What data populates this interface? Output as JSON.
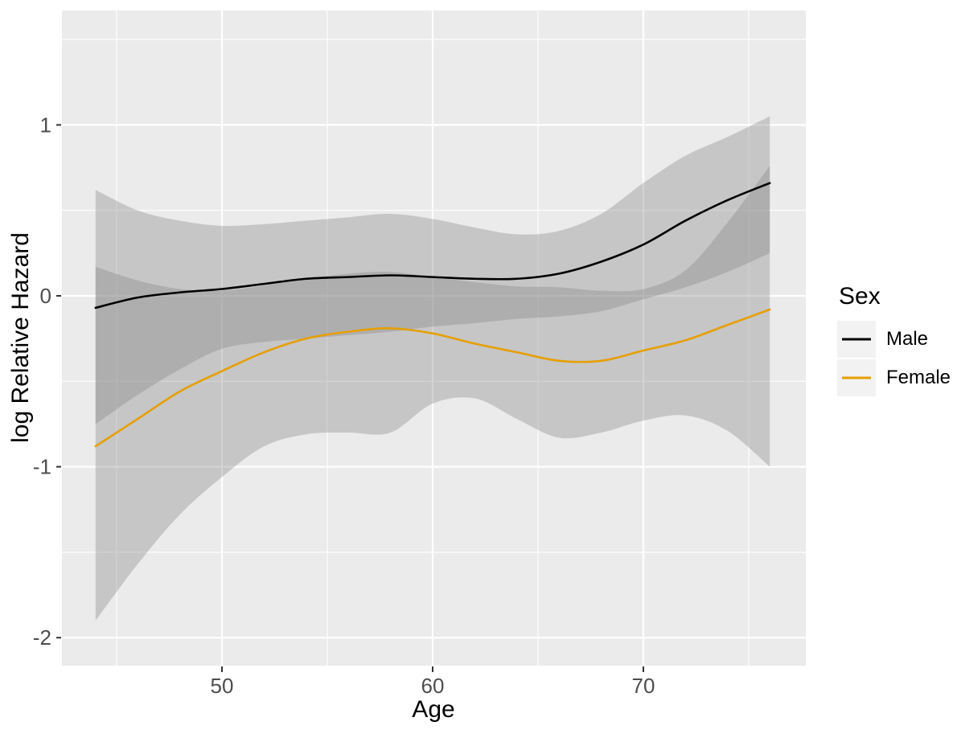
{
  "chart_data": {
    "type": "line",
    "title": "",
    "xlabel": "Age",
    "ylabel": "log Relative Hazard",
    "x_ticks": [
      50,
      60,
      70
    ],
    "x_minor_ticks": [
      45,
      55,
      65,
      75
    ],
    "y_ticks": [
      1,
      0,
      -1,
      -2
    ],
    "y_minor_ticks": [
      1.5,
      0.5,
      -0.5,
      -1.5
    ],
    "xlim": [
      42.4,
      77.6
    ],
    "ylim": [
      -2.16,
      1.67
    ],
    "x": [
      44,
      46,
      48,
      50,
      52,
      54,
      56,
      58,
      60,
      62,
      64,
      66,
      68,
      70,
      72,
      74,
      76
    ],
    "series": [
      {
        "name": "Male",
        "color": "#000000",
        "values": [
          -0.07,
          -0.01,
          0.02,
          0.04,
          0.07,
          0.1,
          0.11,
          0.12,
          0.11,
          0.1,
          0.1,
          0.13,
          0.2,
          0.3,
          0.44,
          0.56,
          0.66
        ],
        "ci_upper": [
          0.62,
          0.5,
          0.44,
          0.41,
          0.42,
          0.44,
          0.46,
          0.48,
          0.45,
          0.4,
          0.36,
          0.38,
          0.48,
          0.66,
          0.82,
          0.93,
          1.05
        ],
        "ci_lower": [
          -0.75,
          -0.58,
          -0.43,
          -0.31,
          -0.27,
          -0.25,
          -0.23,
          -0.21,
          -0.18,
          -0.16,
          -0.135,
          -0.12,
          -0.09,
          -0.02,
          0.05,
          0.14,
          0.25
        ]
      },
      {
        "name": "Female",
        "color": "#E69F00",
        "values": [
          -0.88,
          -0.72,
          -0.56,
          -0.44,
          -0.33,
          -0.25,
          -0.21,
          -0.19,
          -0.22,
          -0.28,
          -0.33,
          -0.38,
          -0.38,
          -0.32,
          -0.26,
          -0.17,
          -0.08
        ],
        "ci_upper": [
          0.17,
          0.09,
          0.04,
          0.03,
          0.06,
          0.1,
          0.13,
          0.14,
          0.11,
          0.08,
          0.055,
          0.05,
          0.03,
          0.04,
          0.15,
          0.43,
          0.76
        ],
        "ci_lower": [
          -1.9,
          -1.57,
          -1.28,
          -1.06,
          -0.88,
          -0.81,
          -0.8,
          -0.8,
          -0.63,
          -0.6,
          -0.72,
          -0.83,
          -0.8,
          -0.73,
          -0.7,
          -0.79,
          -1.0
        ]
      }
    ],
    "legend": {
      "title": "Sex",
      "position": "right",
      "entries": [
        "Male",
        "Female"
      ]
    },
    "grid": "major-minor",
    "panel_bg": "#EBEBEB",
    "grid_color": "#FFFFFF",
    "ribbon_fill": "#808080",
    "ribbon_opacity": 0.35,
    "tick_text_color": "#4D4D4D",
    "tick_mark_color": "#333333",
    "axis_title_color": "#000000",
    "legend_key_bg": "#F2F2F2"
  }
}
